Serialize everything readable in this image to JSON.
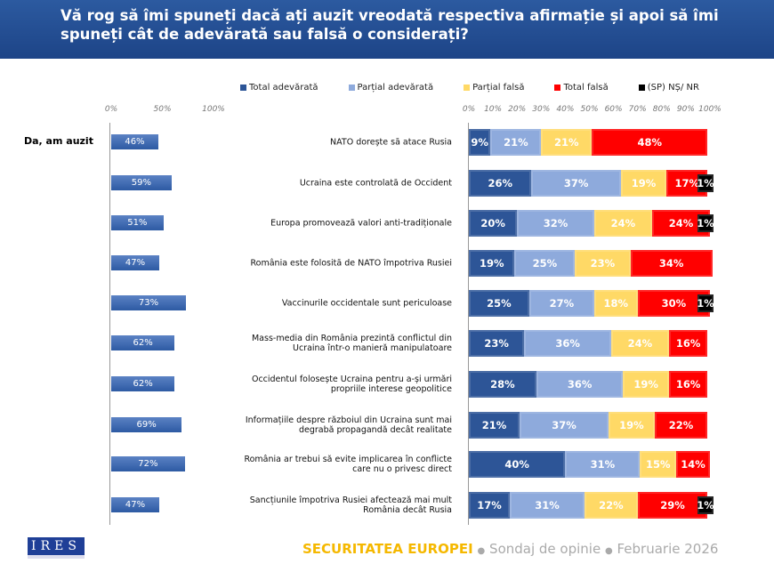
{
  "header": {
    "title": "Vă rog să îmi spuneți dacă ați auzit vreodată respectiva afirmație și apoi să îmi spuneți cât de adevărată sau falsă o considerați?"
  },
  "colors": {
    "total_adevarata": "#2d5597",
    "partial_adevarata": "#8eaadc",
    "partial_falsa": "#ffd966",
    "total_falsa": "#ff0000",
    "ns_nr": "#000000"
  },
  "chart_data": [
    {
      "type": "bar",
      "orientation": "horizontal",
      "title": "",
      "series": [
        {
          "name": "Da, am auzit",
          "values": [
            46,
            59,
            51,
            47,
            73,
            62,
            62,
            69,
            72,
            47
          ]
        }
      ],
      "xlim": [
        0,
        100
      ],
      "ticks": [
        "0%",
        "50%",
        "100%"
      ]
    },
    {
      "type": "bar",
      "stacked": true,
      "orientation": "horizontal",
      "categories": [
        "NATO dorește să atace Rusia",
        "Ucraina este controlată de Occident",
        "Europa promovează valori anti-tradiționale",
        "România este folosită de NATO împotriva Rusiei",
        "Vaccinurile occidentale sunt periculoase",
        "Mass-media din România prezintă conflictul din Ucraina într-o manieră manipulatoare",
        "Occidentul folosește Ucraina pentru a-și urmări propriile interese geopolitice",
        "Informațiile despre războiul din Ucraina sunt mai degrabă propagandă decât realitate",
        "România ar trebui să evite implicarea în conflicte care nu o privesc direct",
        "Sancțiunile împotriva Rusiei afectează mai mult România decât Rusia"
      ],
      "series": [
        {
          "name": "Total adevărată",
          "values": [
            9,
            26,
            20,
            19,
            25,
            23,
            28,
            21,
            40,
            17
          ]
        },
        {
          "name": "Parțial adevărată",
          "values": [
            21,
            37,
            32,
            25,
            27,
            36,
            36,
            37,
            31,
            31
          ]
        },
        {
          "name": "Parțial falsă",
          "values": [
            21,
            19,
            24,
            23,
            18,
            24,
            19,
            19,
            15,
            22
          ]
        },
        {
          "name": "Total falsă",
          "values": [
            48,
            17,
            24,
            34,
            30,
            16,
            16,
            22,
            14,
            29
          ]
        },
        {
          "name": "(SP) NȘ/ NR",
          "values": [
            null,
            1,
            1,
            null,
            1,
            null,
            null,
            null,
            null,
            1
          ]
        }
      ],
      "xlim": [
        0,
        100
      ],
      "ticks": [
        "0%",
        "10%",
        "20%",
        "30%",
        "40%",
        "50%",
        "60%",
        "70%",
        "80%",
        "90%",
        "100%"
      ],
      "legend": "top"
    }
  ],
  "left_label": "Da, am auzit",
  "footer": {
    "logo": "IRES",
    "brand": "SECURITATEA EUROPEI",
    "sep": "●",
    "survey": "Sondaj de opinie",
    "date": "Februarie 2026"
  }
}
